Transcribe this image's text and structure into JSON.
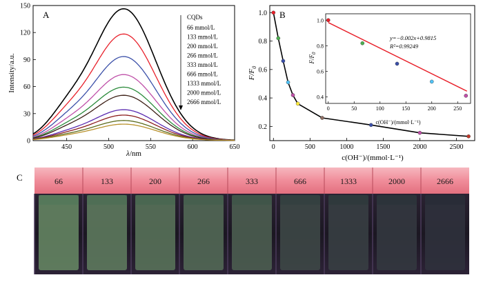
{
  "figure": {
    "panels": [
      "A",
      "B",
      "C"
    ]
  },
  "chart_data": [
    {
      "panel": "A",
      "type": "line",
      "ylabel": "Intensity/a.u.",
      "xlabel_var": "λ",
      "xlabel_unit": "/nm",
      "xlim": [
        410,
        650
      ],
      "ylim": [
        0,
        150
      ],
      "xticks": [
        450,
        500,
        550,
        600,
        650
      ],
      "yticks": [
        0,
        30,
        60,
        90,
        120,
        150
      ],
      "legend_title": "CQDs",
      "legend_position": "top-right",
      "arrow_direction": "down",
      "peak_wavelength": 518,
      "series": [
        {
          "name": "",
          "color": "#000000",
          "peak": 146
        },
        {
          "name": "66 mmol/L",
          "color": "#e8202a",
          "peak": 118
        },
        {
          "name": "133 mmol/L",
          "color": "#3a4fa8",
          "peak": 93
        },
        {
          "name": "200 mmol/L",
          "color": "#bf4fa8",
          "peak": 73
        },
        {
          "name": "266 mmol/L",
          "color": "#2a8a3a",
          "peak": 59
        },
        {
          "name": "333 mmol/L",
          "color": "#3b1e14",
          "peak": 50
        },
        {
          "name": "666 mmol/L",
          "color": "#5a2bb0",
          "peak": 34
        },
        {
          "name": "1333 mmol/L",
          "color": "#8a1b1b",
          "peak": 28
        },
        {
          "name": "2000 mmol/L",
          "color": "#5b6a1a",
          "peak": 22
        },
        {
          "name": "2666 mmol/L",
          "color": "#b8902a",
          "peak": 18
        }
      ]
    },
    {
      "panel": "B",
      "type": "line",
      "ylabel_num": "F",
      "ylabel_den": "F",
      "ylabel_sub": "0",
      "xlabel": "c(OH⁻)/(mmol·L⁻¹)",
      "xlim": [
        -50,
        2750
      ],
      "ylim": [
        0.1,
        1.05
      ],
      "xticks": [
        0,
        500,
        1000,
        1500,
        2000,
        2500
      ],
      "yticks": [
        0.2,
        0.4,
        0.6,
        0.8,
        1.0
      ],
      "x": [
        0,
        66,
        133,
        200,
        266,
        333,
        666,
        1333,
        2000,
        2666
      ],
      "y": [
        1.0,
        0.82,
        0.66,
        0.51,
        0.42,
        0.36,
        0.26,
        0.21,
        0.155,
        0.13
      ],
      "marker_colors": [
        "#e8202a",
        "#4caf50",
        "#3a4fa8",
        "#4fc3f7",
        "#bf4fa8",
        "#ffeb3b",
        "#8d6e63",
        "#3a4fa8",
        "#bf4fa8",
        "#c0392b"
      ],
      "inset": {
        "type": "scatter",
        "xlabel": "c(OH⁻)/(mmol·L⁻¹)",
        "ylabel_num": "F",
        "ylabel_den": "F",
        "ylabel_sub": "0",
        "xlim": [
          -5,
          275
        ],
        "ylim": [
          0.35,
          1.05
        ],
        "xticks": [
          0,
          50,
          100,
          150,
          200,
          250
        ],
        "yticks": [
          0.4,
          0.6,
          0.8,
          1.0
        ],
        "x": [
          0,
          66,
          133,
          200,
          266
        ],
        "y": [
          1.0,
          0.82,
          0.66,
          0.52,
          0.41
        ],
        "marker_colors": [
          "#e8202a",
          "#4caf50",
          "#3a4fa8",
          "#4fc3f7",
          "#bf4fa8"
        ],
        "fit_line": {
          "slope": -0.002,
          "intercept": 0.9815,
          "color": "#e8202a"
        },
        "equation": "y=−0.002x+0.9815",
        "r2": "R²=0.99249"
      }
    }
  ],
  "panel_c": {
    "labels": [
      "66",
      "133",
      "200",
      "266",
      "333",
      "666",
      "1333",
      "2000",
      "2666"
    ],
    "glow_levels": [
      0.85,
      0.75,
      0.68,
      0.6,
      0.5,
      0.3,
      0.22,
      0.15,
      0.1
    ]
  }
}
